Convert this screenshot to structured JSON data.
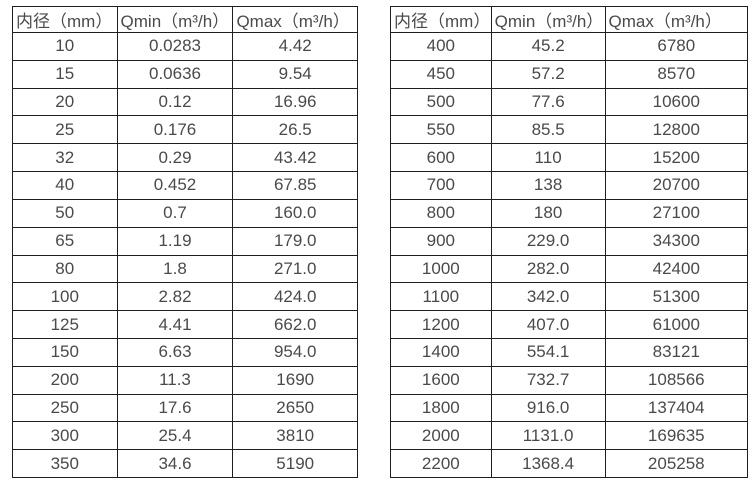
{
  "page": {
    "background": "#ffffff",
    "text_color": "#4a4a4a",
    "border_color": "#1f1f1f"
  },
  "tables": [
    {
      "name": "small-diameter-flow-table",
      "headers": [
        "内径（mm）",
        "Qmin（m³/h）",
        "Qmax（m³/h）"
      ],
      "rows": [
        [
          "10",
          "0.0283",
          "4.42"
        ],
        [
          "15",
          "0.0636",
          "9.54"
        ],
        [
          "20",
          "0.12",
          "16.96"
        ],
        [
          "25",
          "0.176",
          "26.5"
        ],
        [
          "32",
          "0.29",
          "43.42"
        ],
        [
          "40",
          "0.452",
          "67.85"
        ],
        [
          "50",
          "0.7",
          "160.0"
        ],
        [
          "65",
          "1.19",
          "179.0"
        ],
        [
          "80",
          "1.8",
          "271.0"
        ],
        [
          "100",
          "2.82",
          "424.0"
        ],
        [
          "125",
          "4.41",
          "662.0"
        ],
        [
          "150",
          "6.63",
          "954.0"
        ],
        [
          "200",
          "11.3",
          "1690"
        ],
        [
          "250",
          "17.6",
          "2650"
        ],
        [
          "300",
          "25.4",
          "3810"
        ],
        [
          "350",
          "34.6",
          "5190"
        ]
      ]
    },
    {
      "name": "large-diameter-flow-table",
      "headers": [
        "内径（mm）",
        "Qmin（m³/h）",
        "Qmax（m³/h）"
      ],
      "rows": [
        [
          "400",
          "45.2",
          "6780"
        ],
        [
          "450",
          "57.2",
          "8570"
        ],
        [
          "500",
          "77.6",
          "10600"
        ],
        [
          "550",
          "85.5",
          "12800"
        ],
        [
          "600",
          "110",
          "15200"
        ],
        [
          "700",
          "138",
          "20700"
        ],
        [
          "800",
          "180",
          "27100"
        ],
        [
          "900",
          "229.0",
          "34300"
        ],
        [
          "1000",
          "282.0",
          "42400"
        ],
        [
          "1100",
          "342.0",
          "51300"
        ],
        [
          "1200",
          "407.0",
          "61000"
        ],
        [
          "1400",
          "554.1",
          "83121"
        ],
        [
          "1600",
          "732.7",
          "108566"
        ],
        [
          "1800",
          "916.0",
          "137404"
        ],
        [
          "2000",
          "1131.0",
          "169635"
        ],
        [
          "2200",
          "1368.4",
          "205258"
        ]
      ]
    }
  ]
}
